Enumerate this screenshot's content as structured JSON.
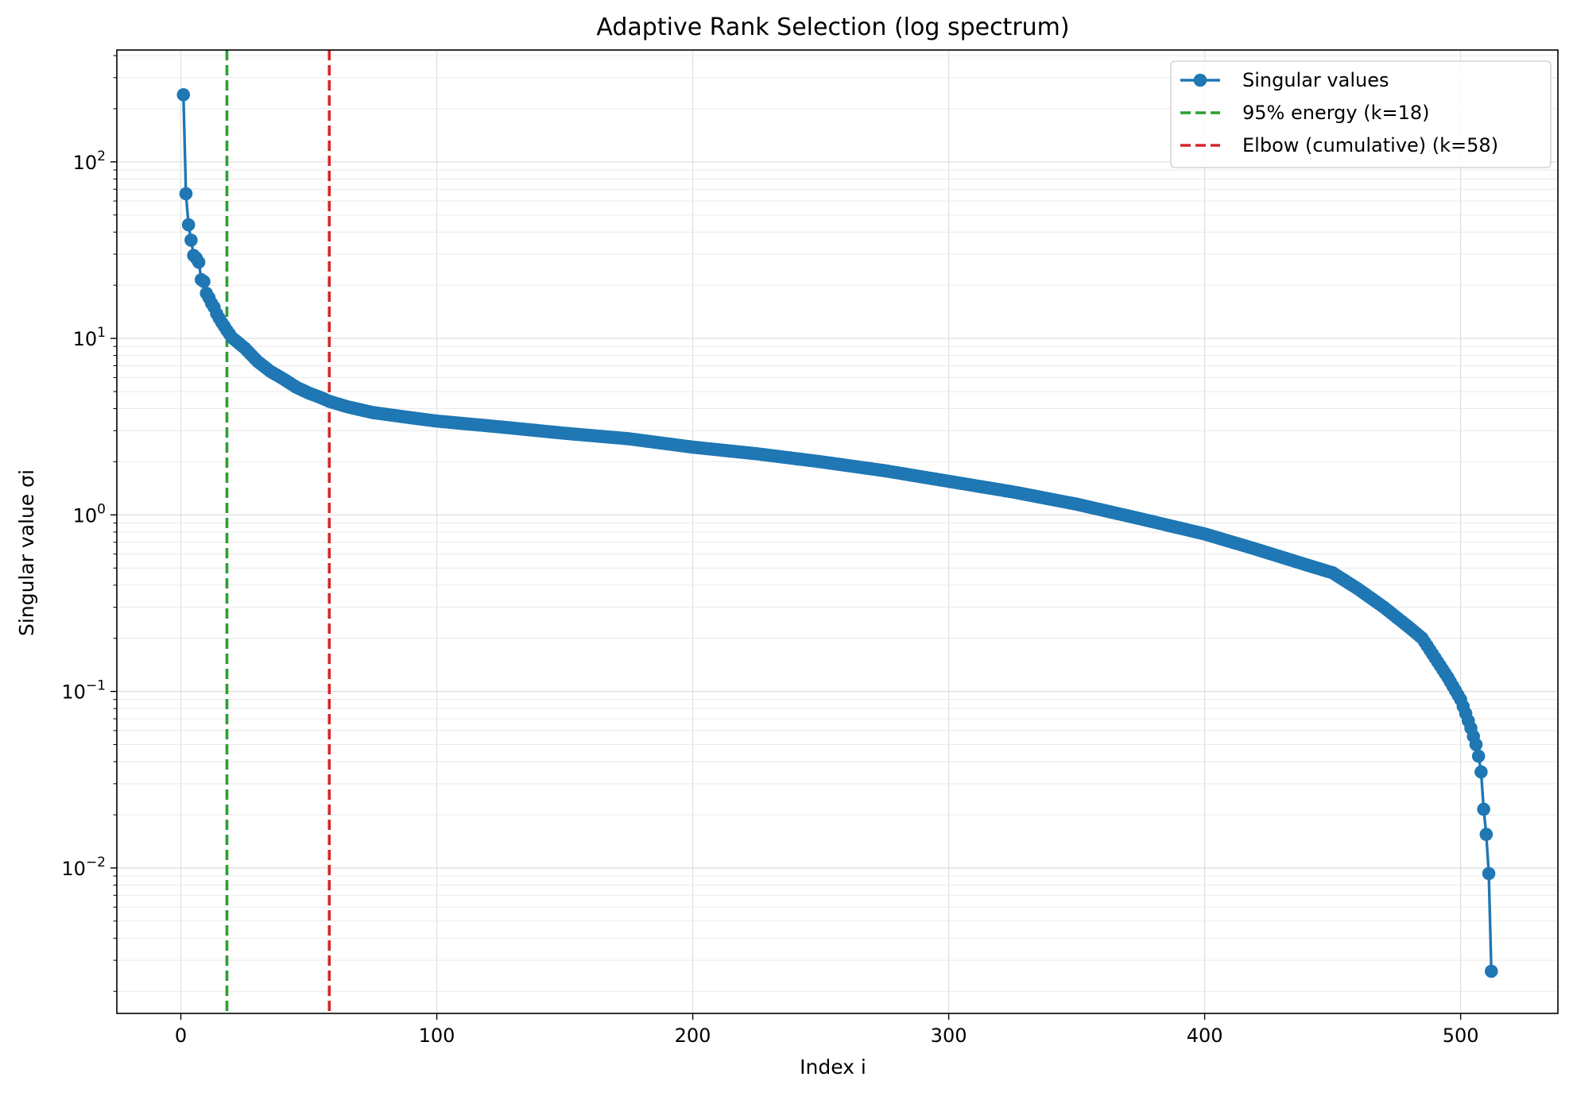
{
  "chart_data": {
    "type": "line",
    "title": "Adaptive Rank Selection (log spectrum)",
    "xlabel": "Index i",
    "ylabel": "Singular value σi",
    "xlim": [
      -25,
      538
    ],
    "ylim": [
      0.0015,
      430
    ],
    "yscale": "log",
    "grid": true,
    "x_ticks": [
      0,
      100,
      200,
      300,
      400,
      500
    ],
    "y_ticks": [
      {
        "value": 0.01,
        "base": "10",
        "exp": "−2"
      },
      {
        "value": 0.1,
        "base": "10",
        "exp": "−1"
      },
      {
        "value": 1,
        "base": "10",
        "exp": "0"
      },
      {
        "value": 10,
        "base": "10",
        "exp": "1"
      },
      {
        "value": 100,
        "base": "10",
        "exp": "2"
      }
    ],
    "legend_position": "top-right",
    "series": [
      {
        "name": "Singular values",
        "color": "#1f77b4",
        "marker": "circle",
        "anchors": [
          [
            1,
            240
          ],
          [
            2,
            66
          ],
          [
            3,
            44
          ],
          [
            4,
            36
          ],
          [
            5,
            29.5
          ],
          [
            6,
            28.5
          ],
          [
            7,
            27
          ],
          [
            8,
            21.5
          ],
          [
            9,
            21
          ],
          [
            10,
            18
          ],
          [
            11,
            17
          ],
          [
            12,
            15.8
          ],
          [
            13,
            15
          ],
          [
            14,
            13.8
          ],
          [
            15,
            13
          ],
          [
            16,
            12.3
          ],
          [
            17,
            11.7
          ],
          [
            18,
            11.1
          ],
          [
            20,
            10.1
          ],
          [
            25,
            8.8
          ],
          [
            30,
            7.4
          ],
          [
            35,
            6.5
          ],
          [
            40,
            5.9
          ],
          [
            45,
            5.3
          ],
          [
            50,
            4.9
          ],
          [
            55,
            4.6
          ],
          [
            58,
            4.4
          ],
          [
            65,
            4.1
          ],
          [
            75,
            3.8
          ],
          [
            90,
            3.55
          ],
          [
            100,
            3.4
          ],
          [
            125,
            3.15
          ],
          [
            150,
            2.9
          ],
          [
            175,
            2.7
          ],
          [
            200,
            2.42
          ],
          [
            225,
            2.22
          ],
          [
            250,
            2.0
          ],
          [
            275,
            1.78
          ],
          [
            300,
            1.55
          ],
          [
            325,
            1.35
          ],
          [
            350,
            1.15
          ],
          [
            375,
            0.95
          ],
          [
            400,
            0.78
          ],
          [
            420,
            0.64
          ],
          [
            440,
            0.52
          ],
          [
            450,
            0.47
          ],
          [
            460,
            0.38
          ],
          [
            470,
            0.3
          ],
          [
            480,
            0.23
          ],
          [
            485,
            0.2
          ],
          [
            490,
            0.155
          ],
          [
            495,
            0.12
          ],
          [
            500,
            0.09
          ],
          [
            502,
            0.075
          ],
          [
            504,
            0.062
          ],
          [
            506,
            0.05
          ],
          [
            507,
            0.043
          ],
          [
            508,
            0.035
          ],
          [
            509,
            0.0215
          ],
          [
            510,
            0.0155
          ],
          [
            511,
            0.0093
          ],
          [
            512,
            0.0026
          ]
        ]
      },
      {
        "name": "95% energy (k=18)",
        "color": "#2ca02c",
        "style": "dashed",
        "vline_x": 18
      },
      {
        "name": "Elbow (cumulative) (k=58)",
        "color": "#d62728",
        "style": "dashed",
        "vline_x": 58
      }
    ]
  }
}
